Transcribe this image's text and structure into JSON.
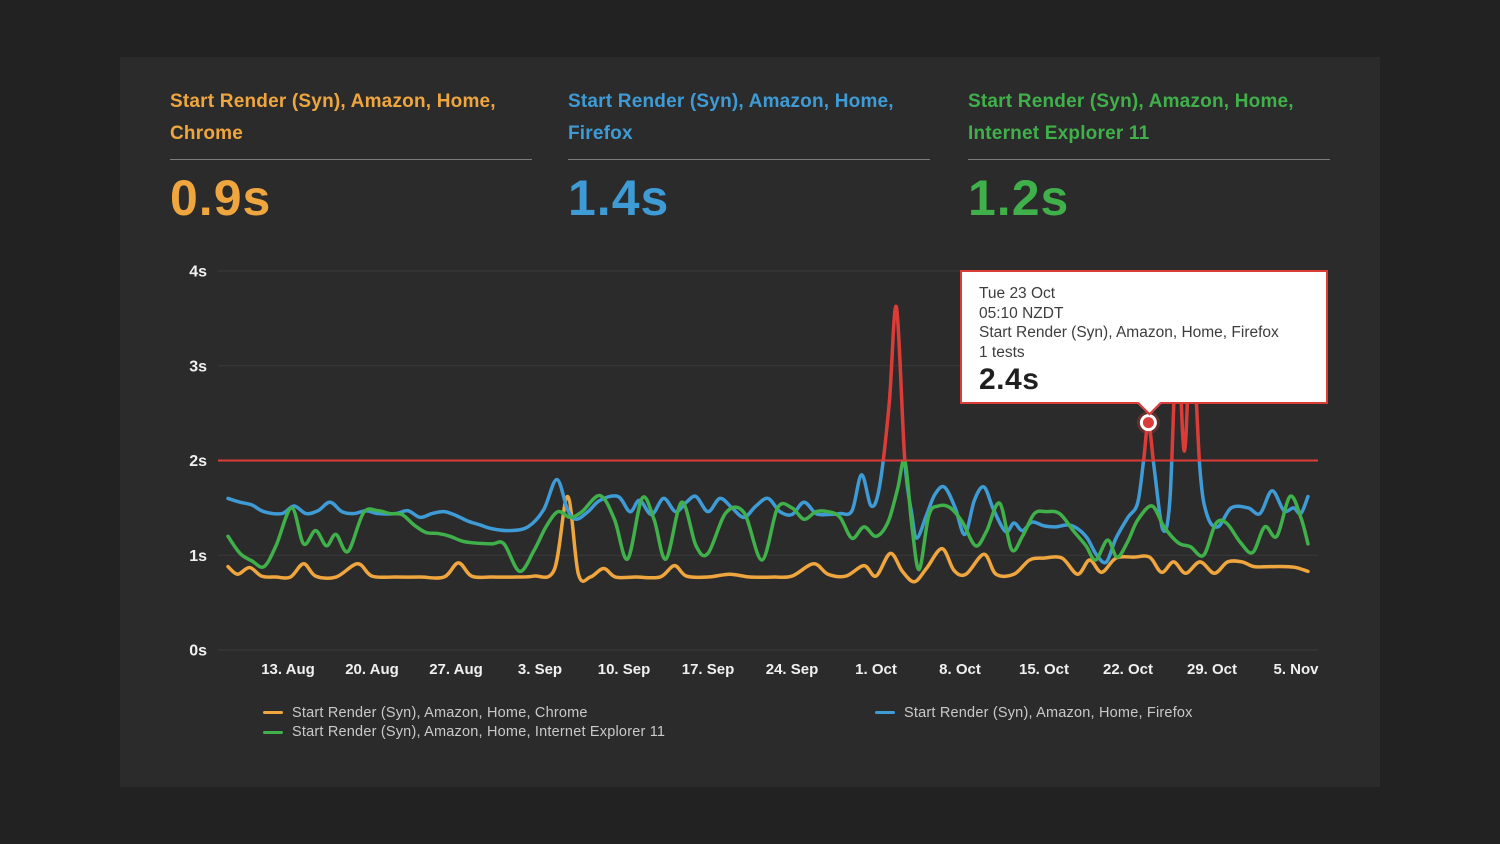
{
  "cards": [
    {
      "title": "Start Render (Syn), Amazon, Home, Chrome",
      "value": "0.9s",
      "color": "#efa63e"
    },
    {
      "title": "Start Render (Syn), Amazon, Home, Firefox",
      "value": "1.4s",
      "color": "#3e9bd6"
    },
    {
      "title": "Start Render (Syn), Amazon, Home, Internet Explorer 11",
      "value": "1.2s",
      "color": "#40b04a"
    }
  ],
  "tooltip": {
    "date": "Tue 23 Oct",
    "time": "05:10 NZDT",
    "series": "Start Render (Syn), Amazon, Home, Firefox",
    "tests": "1 tests",
    "value": "2.4s"
  },
  "chart_data": {
    "type": "line",
    "title": "",
    "xlabel": "",
    "ylabel": "",
    "ylim": [
      0,
      4
    ],
    "y_ticks": [
      "0s",
      "1s",
      "2s",
      "3s",
      "4s"
    ],
    "x_ticks": [
      "13. Aug",
      "20. Aug",
      "27. Aug",
      "3. Sep",
      "10. Sep",
      "17. Sep",
      "24. Sep",
      "1. Oct",
      "8. Oct",
      "15. Oct",
      "22. Oct",
      "29. Oct",
      "5. Nov"
    ],
    "grid": "horizontal",
    "legend_position": "bottom",
    "threshold": {
      "value": 2,
      "color": "#dc3c38",
      "note": "values above threshold drawn in red"
    },
    "marker": {
      "day": 76.7,
      "value": 2.4,
      "series": "Start Render (Syn), Amazon, Home, Firefox"
    },
    "x_unit": "days since 8 Aug (ticks at 7-day steps starting day 5)",
    "series": [
      {
        "name": "Start Render (Syn), Amazon, Home, Chrome",
        "color": "#efa63e",
        "alert": false,
        "points": [
          [
            0,
            0.88
          ],
          [
            0.8,
            0.8
          ],
          [
            1.8,
            0.87
          ],
          [
            2.8,
            0.78
          ],
          [
            4,
            0.77
          ],
          [
            5.2,
            0.77
          ],
          [
            6.3,
            0.91
          ],
          [
            7.3,
            0.78
          ],
          [
            9,
            0.77
          ],
          [
            10.8,
            0.91
          ],
          [
            12,
            0.78
          ],
          [
            14,
            0.77
          ],
          [
            16,
            0.77
          ],
          [
            18,
            0.77
          ],
          [
            19.2,
            0.92
          ],
          [
            20.3,
            0.78
          ],
          [
            22,
            0.77
          ],
          [
            24,
            0.77
          ],
          [
            25.5,
            0.78
          ],
          [
            27.2,
            0.85
          ],
          [
            28.3,
            1.62
          ],
          [
            29.2,
            0.8
          ],
          [
            30.2,
            0.77
          ],
          [
            31.3,
            0.86
          ],
          [
            32.3,
            0.77
          ],
          [
            34,
            0.77
          ],
          [
            36,
            0.77
          ],
          [
            37.2,
            0.89
          ],
          [
            38.2,
            0.78
          ],
          [
            40,
            0.77
          ],
          [
            41.8,
            0.8
          ],
          [
            43.5,
            0.77
          ],
          [
            45.5,
            0.77
          ],
          [
            47,
            0.78
          ],
          [
            48.8,
            0.91
          ],
          [
            50,
            0.8
          ],
          [
            51.5,
            0.78
          ],
          [
            53,
            0.89
          ],
          [
            54,
            0.78
          ],
          [
            55.2,
            1.02
          ],
          [
            56.2,
            0.83
          ],
          [
            57.2,
            0.72
          ],
          [
            58.2,
            0.86
          ],
          [
            59.5,
            1.07
          ],
          [
            60.5,
            0.84
          ],
          [
            61.5,
            0.8
          ],
          [
            63,
            1.01
          ],
          [
            64,
            0.8
          ],
          [
            65.5,
            0.8
          ],
          [
            66.8,
            0.95
          ],
          [
            68,
            0.97
          ],
          [
            69.5,
            0.97
          ],
          [
            70.8,
            0.8
          ],
          [
            71.8,
            0.95
          ],
          [
            72.8,
            0.82
          ],
          [
            74,
            0.97
          ],
          [
            75.5,
            0.98
          ],
          [
            76.8,
            0.98
          ],
          [
            77.8,
            0.82
          ],
          [
            78.8,
            0.93
          ],
          [
            79.8,
            0.81
          ],
          [
            81,
            0.93
          ],
          [
            82.2,
            0.81
          ],
          [
            83.3,
            0.93
          ],
          [
            84.5,
            0.93
          ],
          [
            85.5,
            0.88
          ],
          [
            86.8,
            0.88
          ],
          [
            88,
            0.88
          ],
          [
            89,
            0.87
          ],
          [
            90,
            0.83
          ]
        ]
      },
      {
        "name": "Start Render (Syn), Amazon, Home, Firefox",
        "color": "#3e9bd6",
        "alert": true,
        "points": [
          [
            0,
            1.6
          ],
          [
            1,
            1.56
          ],
          [
            2,
            1.53
          ],
          [
            3,
            1.46
          ],
          [
            4.5,
            1.44
          ],
          [
            5.5,
            1.52
          ],
          [
            6.5,
            1.44
          ],
          [
            7.5,
            1.47
          ],
          [
            8.5,
            1.56
          ],
          [
            9.5,
            1.46
          ],
          [
            10.5,
            1.44
          ],
          [
            11.5,
            1.47
          ],
          [
            12.5,
            1.44
          ],
          [
            14,
            1.44
          ],
          [
            15,
            1.47
          ],
          [
            16,
            1.4
          ],
          [
            17,
            1.44
          ],
          [
            18,
            1.46
          ],
          [
            19,
            1.42
          ],
          [
            20,
            1.36
          ],
          [
            21,
            1.32
          ],
          [
            22,
            1.28
          ],
          [
            23.5,
            1.26
          ],
          [
            25,
            1.3
          ],
          [
            26.3,
            1.48
          ],
          [
            27.4,
            1.8
          ],
          [
            28.3,
            1.48
          ],
          [
            29,
            1.38
          ],
          [
            30,
            1.46
          ],
          [
            31,
            1.58
          ],
          [
            32.5,
            1.62
          ],
          [
            33.5,
            1.46
          ],
          [
            34.3,
            1.58
          ],
          [
            35.3,
            1.43
          ],
          [
            36.3,
            1.6
          ],
          [
            37.3,
            1.46
          ],
          [
            38.2,
            1.56
          ],
          [
            39,
            1.62
          ],
          [
            40,
            1.46
          ],
          [
            41,
            1.6
          ],
          [
            42,
            1.5
          ],
          [
            43,
            1.4
          ],
          [
            44,
            1.52
          ],
          [
            45,
            1.6
          ],
          [
            46,
            1.46
          ],
          [
            47,
            1.43
          ],
          [
            48,
            1.56
          ],
          [
            49,
            1.44
          ],
          [
            50,
            1.43
          ],
          [
            51,
            1.44
          ],
          [
            52,
            1.47
          ],
          [
            52.8,
            1.85
          ],
          [
            53.6,
            1.52
          ],
          [
            54.3,
            1.73
          ],
          [
            55.1,
            2.6
          ],
          [
            55.7,
            3.62
          ],
          [
            56.4,
            2.0
          ],
          [
            57,
            1.42
          ],
          [
            57.4,
            1.18
          ],
          [
            58.2,
            1.42
          ],
          [
            58.9,
            1.64
          ],
          [
            59.7,
            1.72
          ],
          [
            60.6,
            1.5
          ],
          [
            61.4,
            1.22
          ],
          [
            62.2,
            1.58
          ],
          [
            63,
            1.72
          ],
          [
            63.8,
            1.48
          ],
          [
            64.8,
            1.25
          ],
          [
            65.5,
            1.34
          ],
          [
            66.2,
            1.26
          ],
          [
            67,
            1.35
          ],
          [
            68,
            1.31
          ],
          [
            69,
            1.3
          ],
          [
            70,
            1.32
          ],
          [
            70.8,
            1.28
          ],
          [
            71.6,
            1.18
          ],
          [
            72.4,
            1.0
          ],
          [
            73.2,
            0.93
          ],
          [
            74,
            1.18
          ],
          [
            75,
            1.4
          ],
          [
            75.8,
            1.55
          ],
          [
            76.3,
            2.0
          ],
          [
            76.7,
            2.4
          ],
          [
            77.2,
            1.9
          ],
          [
            77.9,
            1.27
          ],
          [
            78.5,
            1.6
          ],
          [
            79.1,
            3.3
          ],
          [
            79.7,
            2.1
          ],
          [
            80.3,
            3.4
          ],
          [
            81,
            1.9
          ],
          [
            81.6,
            1.42
          ],
          [
            82.5,
            1.3
          ],
          [
            83.6,
            1.5
          ],
          [
            85,
            1.5
          ],
          [
            86,
            1.44
          ],
          [
            87,
            1.68
          ],
          [
            88,
            1.47
          ],
          [
            88.8,
            1.5
          ],
          [
            89.4,
            1.44
          ],
          [
            90,
            1.62
          ]
        ]
      },
      {
        "name": "Start Render (Syn), Amazon, Home, Internet Explorer 11",
        "color": "#40b04a",
        "alert": false,
        "points": [
          [
            0,
            1.2
          ],
          [
            1,
            1.02
          ],
          [
            2,
            0.94
          ],
          [
            3,
            0.88
          ],
          [
            4,
            1.1
          ],
          [
            5.3,
            1.5
          ],
          [
            6.3,
            1.12
          ],
          [
            7.3,
            1.26
          ],
          [
            8.2,
            1.1
          ],
          [
            9,
            1.22
          ],
          [
            10,
            1.04
          ],
          [
            11.3,
            1.45
          ],
          [
            12.5,
            1.47
          ],
          [
            13.5,
            1.44
          ],
          [
            14.5,
            1.43
          ],
          [
            15.5,
            1.32
          ],
          [
            16.5,
            1.24
          ],
          [
            17.5,
            1.23
          ],
          [
            18.5,
            1.2
          ],
          [
            19.5,
            1.15
          ],
          [
            20.5,
            1.13
          ],
          [
            22,
            1.12
          ],
          [
            23,
            1.12
          ],
          [
            24.3,
            0.83
          ],
          [
            25.5,
            1.05
          ],
          [
            26.5,
            1.3
          ],
          [
            27.5,
            1.46
          ],
          [
            28.5,
            1.4
          ],
          [
            29.5,
            1.46
          ],
          [
            31,
            1.63
          ],
          [
            32.2,
            1.38
          ],
          [
            33.3,
            0.96
          ],
          [
            34.5,
            1.6
          ],
          [
            35.5,
            1.38
          ],
          [
            36.5,
            0.96
          ],
          [
            37.8,
            1.56
          ],
          [
            39,
            1.1
          ],
          [
            40,
            1.02
          ],
          [
            41.5,
            1.45
          ],
          [
            43,
            1.45
          ],
          [
            44.5,
            0.95
          ],
          [
            45.8,
            1.5
          ],
          [
            47,
            1.5
          ],
          [
            48,
            1.38
          ],
          [
            49,
            1.46
          ],
          [
            50,
            1.46
          ],
          [
            51,
            1.4
          ],
          [
            52,
            1.18
          ],
          [
            53,
            1.3
          ],
          [
            54,
            1.2
          ],
          [
            55,
            1.35
          ],
          [
            55.8,
            1.7
          ],
          [
            56.4,
            2.0
          ],
          [
            57,
            1.3
          ],
          [
            57.6,
            0.85
          ],
          [
            58.4,
            1.42
          ],
          [
            59.2,
            1.52
          ],
          [
            60.2,
            1.5
          ],
          [
            61.2,
            1.35
          ],
          [
            62.3,
            1.1
          ],
          [
            63.2,
            1.25
          ],
          [
            64.3,
            1.55
          ],
          [
            65.3,
            1.06
          ],
          [
            66.2,
            1.2
          ],
          [
            67.2,
            1.44
          ],
          [
            68.2,
            1.46
          ],
          [
            69.3,
            1.44
          ],
          [
            70.5,
            1.25
          ],
          [
            71.5,
            1.1
          ],
          [
            72.3,
            0.95
          ],
          [
            73.3,
            1.16
          ],
          [
            74.1,
            0.98
          ],
          [
            75,
            1.15
          ],
          [
            75.8,
            1.37
          ],
          [
            77,
            1.52
          ],
          [
            78,
            1.3
          ],
          [
            79.2,
            1.13
          ],
          [
            80.2,
            1.09
          ],
          [
            81.3,
            1.0
          ],
          [
            82.3,
            1.33
          ],
          [
            83.2,
            1.34
          ],
          [
            84.4,
            1.13
          ],
          [
            85.4,
            1.03
          ],
          [
            86.4,
            1.3
          ],
          [
            87.4,
            1.2
          ],
          [
            88.5,
            1.62
          ],
          [
            89.4,
            1.4
          ],
          [
            90,
            1.12
          ]
        ]
      }
    ]
  },
  "colors": {
    "page_background": "#222222",
    "panel_background": "#2b2b2b",
    "gridline": "#3b3b3b",
    "axis_text": "#f0f0f0",
    "legend_text": "#c9c9c9",
    "alert_red": "#dc3c38",
    "tooltip_background": "#ffffff",
    "tooltip_text": "#3d3d3d"
  }
}
